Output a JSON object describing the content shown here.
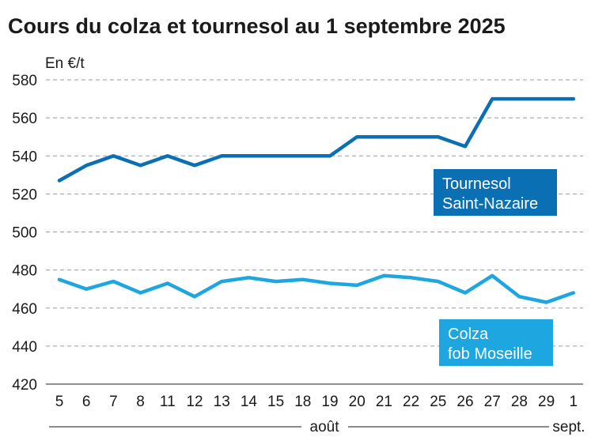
{
  "chart_data": {
    "type": "line",
    "title": "Cours du colza et tournesol au 1 septembre 2025",
    "ylabel": "En €/t",
    "xlabel": "",
    "ylim": [
      420,
      580
    ],
    "yticks": [
      420,
      440,
      460,
      480,
      500,
      520,
      540,
      560,
      580
    ],
    "grid": true,
    "categories": [
      "5",
      "6",
      "7",
      "8",
      "11",
      "12",
      "13",
      "14",
      "15",
      "18",
      "19",
      "20",
      "21",
      "22",
      "25",
      "26",
      "27",
      "28",
      "29",
      "1"
    ],
    "month_labels": [
      {
        "label": "août",
        "from": "5",
        "to": "29"
      },
      {
        "label": "sept.",
        "from": "1",
        "to": "1"
      }
    ],
    "series": [
      {
        "name": "Tournesol Saint-Nazaire",
        "label_lines": [
          "Tournesol",
          "Saint-Nazaire"
        ],
        "color": "#0b6fb3",
        "values": [
          527,
          535,
          540,
          535,
          540,
          535,
          540,
          540,
          540,
          540,
          540,
          550,
          550,
          550,
          550,
          545,
          570,
          570,
          570,
          570
        ]
      },
      {
        "name": "Colza fob Moseille",
        "label_lines": [
          "Colza",
          "fob Moseille"
        ],
        "color": "#1ea6e0",
        "values": [
          475,
          470,
          474,
          468,
          473,
          466,
          474,
          476,
          474,
          475,
          473,
          472,
          477,
          476,
          474,
          468,
          477,
          466,
          463,
          468
        ]
      }
    ]
  }
}
